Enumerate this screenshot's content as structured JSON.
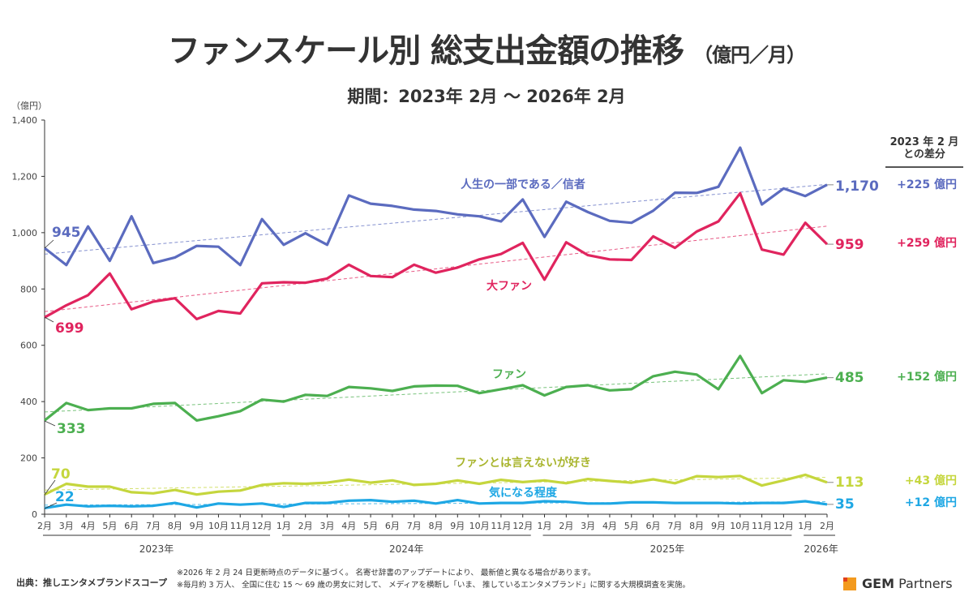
{
  "header": {
    "title": "ファンスケール別 総支出金額の推移",
    "title_unit": "（億円／月）",
    "period": "期間：2023年 2月 ～ 2026年 2月"
  },
  "diff_header": {
    "line1": "2023 年 2 月",
    "line2": "との差分"
  },
  "footer": {
    "source": "出典：推しエンタメブランドスコープ",
    "note1": "※2026 年 2 月 24 日更新時点のデータに基づく。 名寄せ辞書のアップデートにより、 最新値と異なる場合があります。",
    "note2": "※毎月約 3 万人、 全国に住む 15 ～ 69 歳の男女に対して、 メディアを横断し「いま、 推しているエンタメブランド」に関する大規模調査を実施。",
    "logo_text_bold": "GEM",
    "logo_text": " Partners",
    "logo_colors": {
      "main": "#f39a1e",
      "accent": "#e2401b"
    }
  },
  "chart_data": {
    "type": "line",
    "title": "ファンスケール別 総支出金額の推移（億円／月）",
    "subtitle": "期間：2023年 2月 ～ 2026年 2月",
    "ylabel": "（億円）",
    "xlabel": "",
    "ylim": [
      0,
      1400
    ],
    "yticks": [
      0,
      200,
      400,
      600,
      800,
      1000,
      1200,
      1400
    ],
    "ytick_labels": [
      "0",
      "200",
      "400",
      "600",
      "800",
      "1,000",
      "1,200",
      "1,400"
    ],
    "grid": false,
    "trendlines": true,
    "categories": [
      "2月",
      "3月",
      "4月",
      "5月",
      "6月",
      "7月",
      "8月",
      "9月",
      "10月",
      "11月",
      "12月",
      "1月",
      "2月",
      "3月",
      "4月",
      "5月",
      "6月",
      "7月",
      "8月",
      "9月",
      "10月",
      "11月",
      "12月",
      "1月",
      "2月",
      "3月",
      "4月",
      "5月",
      "6月",
      "7月",
      "8月",
      "9月",
      "10月",
      "11月",
      "12月",
      "1月",
      "2月"
    ],
    "year_groups": [
      {
        "label": "2023年",
        "start": 0,
        "end": 10
      },
      {
        "label": "2024年",
        "start": 11,
        "end": 22
      },
      {
        "label": "2025年",
        "start": 23,
        "end": 34
      },
      {
        "label": "2026年",
        "start": 35,
        "end": 36
      }
    ],
    "series": [
      {
        "name": "人生の一部である／信者",
        "color": "#5b6bbf",
        "start_label": "945",
        "end_label": "1,170",
        "diff_label": "+225 億円",
        "values": [
          945,
          885,
          1022,
          900,
          1058,
          892,
          912,
          953,
          950,
          885,
          1048,
          957,
          998,
          957,
          1132,
          1103,
          1095,
          1082,
          1077,
          1065,
          1058,
          1040,
          1118,
          985,
          1110,
          1073,
          1042,
          1035,
          1078,
          1142,
          1141,
          1163,
          1302,
          1100,
          1157,
          1130,
          1170
        ]
      },
      {
        "name": "大ファン",
        "color": "#e0245e",
        "start_label": "699",
        "end_label": "959",
        "diff_label": "+259 億円",
        "values": [
          699,
          742,
          778,
          855,
          728,
          755,
          767,
          693,
          722,
          713,
          820,
          824,
          822,
          837,
          886,
          846,
          842,
          886,
          858,
          876,
          905,
          924,
          964,
          833,
          966,
          920,
          905,
          903,
          987,
          946,
          1004,
          1040,
          1140,
          940,
          922,
          1035,
          959
        ]
      },
      {
        "name": "ファン",
        "color": "#4caf50",
        "start_label": "333",
        "end_label": "485",
        "diff_label": "+152 億円",
        "values": [
          333,
          395,
          370,
          376,
          376,
          392,
          395,
          333,
          348,
          366,
          407,
          400,
          424,
          420,
          452,
          447,
          438,
          454,
          457,
          456,
          430,
          444,
          458,
          422,
          452,
          458,
          440,
          444,
          490,
          506,
          496,
          444,
          562,
          430,
          476,
          470,
          485
        ]
      },
      {
        "name": "ファンとは言えないが好き",
        "color": "#c5d63d",
        "label_color": "#a9b52e",
        "start_label": "70",
        "end_label": "113",
        "diff_label": "+43 億円",
        "values": [
          70,
          108,
          98,
          98,
          78,
          74,
          86,
          70,
          80,
          84,
          104,
          110,
          108,
          112,
          123,
          112,
          120,
          104,
          108,
          120,
          108,
          122,
          114,
          120,
          110,
          125,
          118,
          112,
          124,
          110,
          135,
          132,
          136,
          102,
          120,
          140,
          113
        ]
      },
      {
        "name": "気になる程度",
        "color": "#1ea7e4",
        "start_label": "22",
        "end_label": "35",
        "diff_label": "+12 億円",
        "values": [
          22,
          34,
          28,
          30,
          28,
          30,
          40,
          24,
          38,
          34,
          38,
          26,
          40,
          40,
          48,
          50,
          44,
          48,
          38,
          50,
          38,
          40,
          40,
          46,
          44,
          38,
          38,
          42,
          42,
          40,
          40,
          40,
          38,
          40,
          40,
          46,
          35
        ]
      }
    ]
  }
}
